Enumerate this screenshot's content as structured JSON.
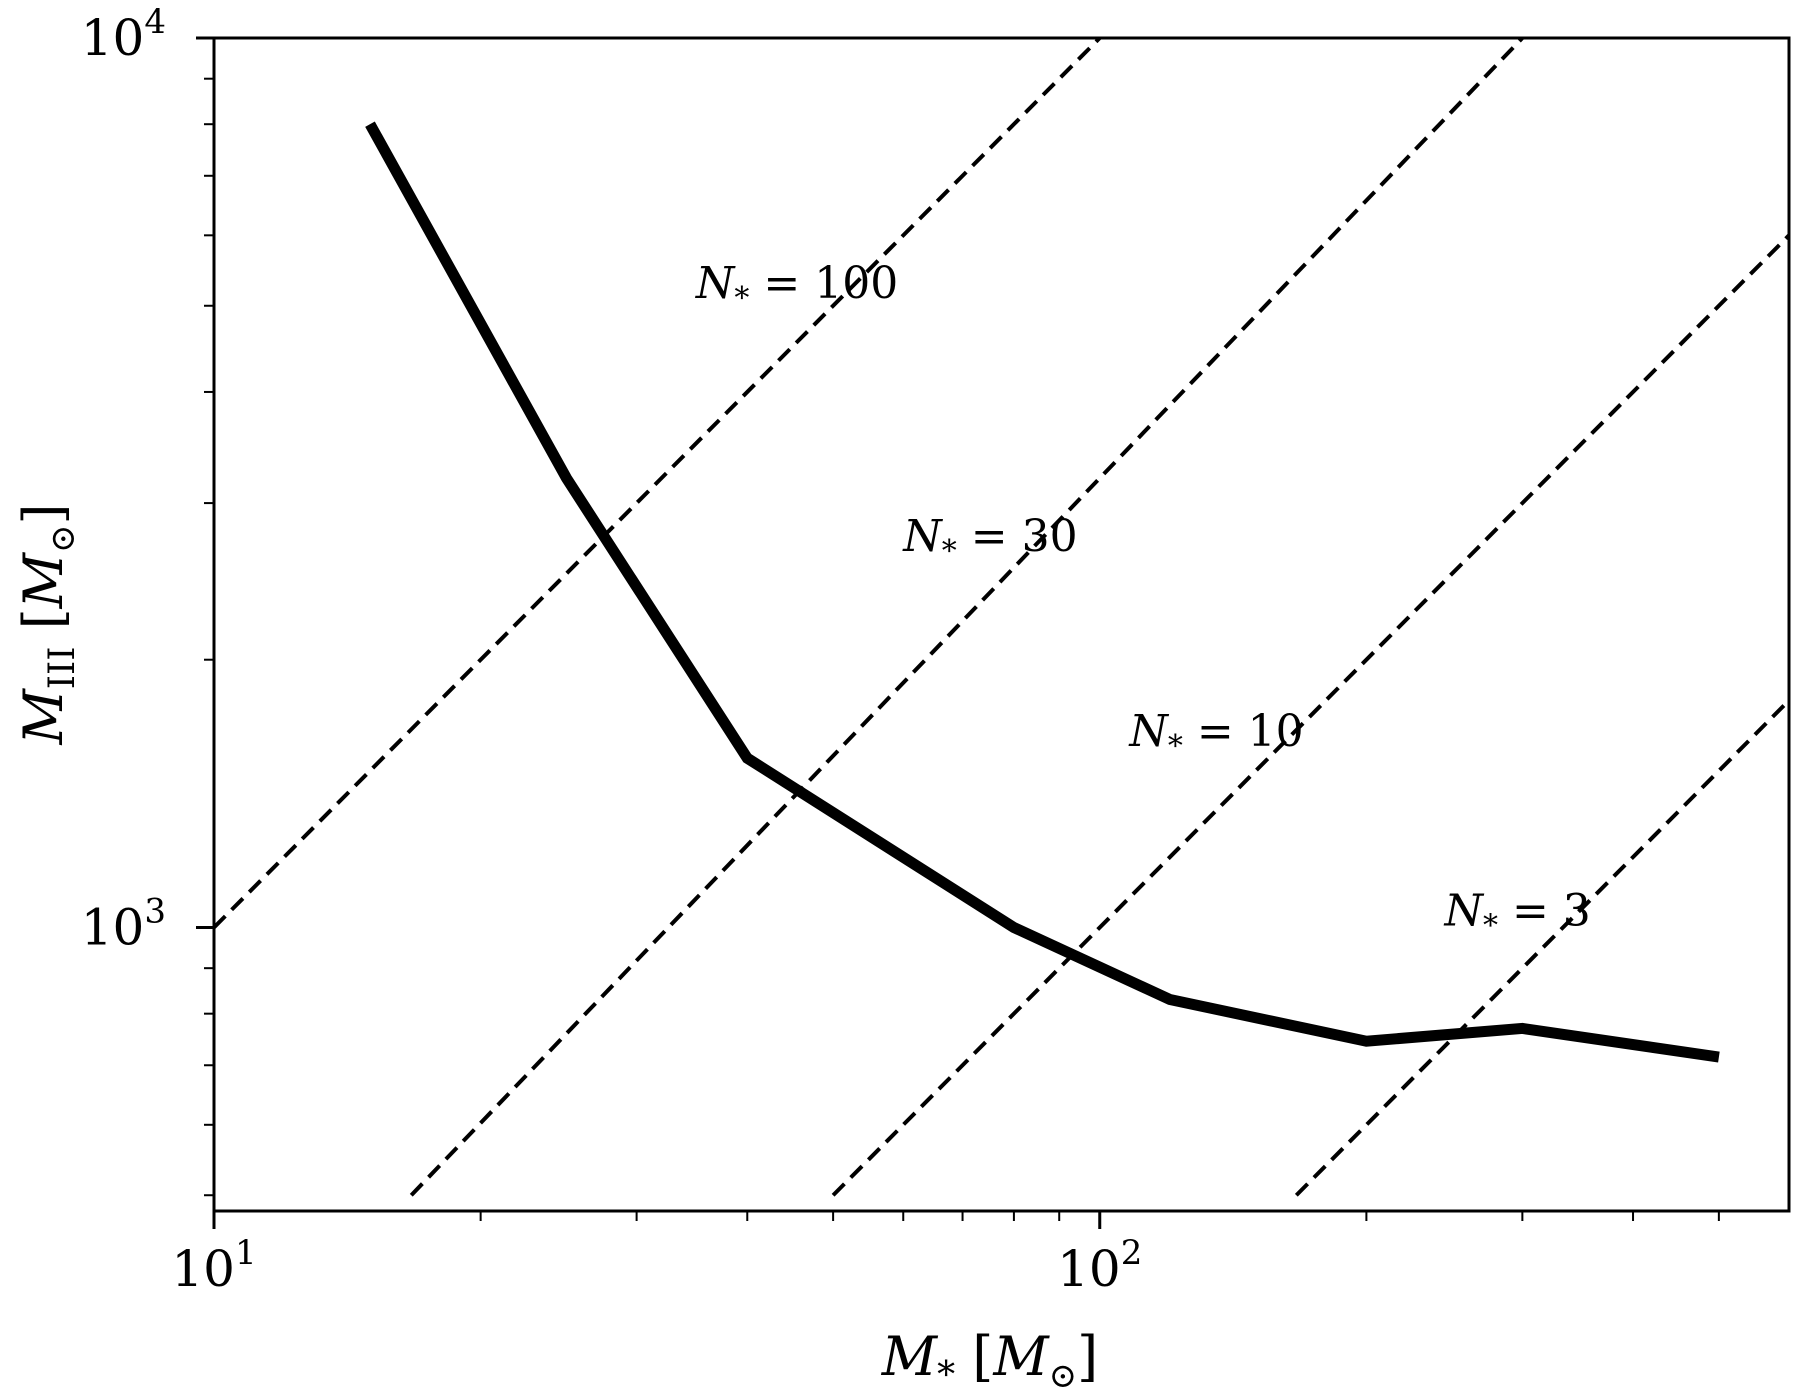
{
  "chart_data": {
    "type": "line",
    "xscale": "log",
    "yscale": "log",
    "xlim": [
      10,
      600
    ],
    "ylim": [
      480,
      10000
    ],
    "xlabel": "M_* [M_⊙]",
    "ylabel": "M_III [M_⊙]",
    "x_ticks": [
      {
        "base": "10",
        "exp": "1",
        "value": 10
      },
      {
        "base": "10",
        "exp": "2",
        "value": 100
      }
    ],
    "y_ticks": [
      {
        "base": "10",
        "exp": "3",
        "value": 1000
      },
      {
        "base": "10",
        "exp": "4",
        "value": 10000
      }
    ],
    "series": [
      {
        "style": "solid",
        "points": [
          {
            "x": 15,
            "y": 8000
          },
          {
            "x": 25,
            "y": 3200
          },
          {
            "x": 40,
            "y": 1550
          },
          {
            "x": 80,
            "y": 1000
          },
          {
            "x": 120,
            "y": 830
          },
          {
            "x": 200,
            "y": 745
          },
          {
            "x": 300,
            "y": 770
          },
          {
            "x": 500,
            "y": 715
          }
        ]
      }
    ],
    "reference_lines": [
      {
        "label_base": "N",
        "label_sub": "*",
        "label_rest": " = 100",
        "N": 100,
        "x": [
          10,
          100
        ],
        "y": [
          1000,
          10000
        ],
        "label_at": {
          "x": 35,
          "y": 5100
        }
      },
      {
        "label_base": "N",
        "label_sub": "*",
        "label_rest": " = 30",
        "N": 30,
        "x": [
          16.7,
          300
        ],
        "y": [
          500,
          10000
        ],
        "label_at": {
          "x": 60,
          "y": 2650
        }
      },
      {
        "label_base": "N",
        "label_sub": "*",
        "label_rest": " = 10",
        "N": 10,
        "x": [
          50,
          600
        ],
        "y": [
          500,
          6000
        ],
        "label_at": {
          "x": 108,
          "y": 1600
        }
      },
      {
        "label_base": "N",
        "label_sub": "*",
        "label_rest": " = 3",
        "N": 3,
        "x": [
          166.7,
          600
        ],
        "y": [
          500,
          1800
        ],
        "label_at": {
          "x": 245,
          "y": 1005
        }
      }
    ]
  }
}
